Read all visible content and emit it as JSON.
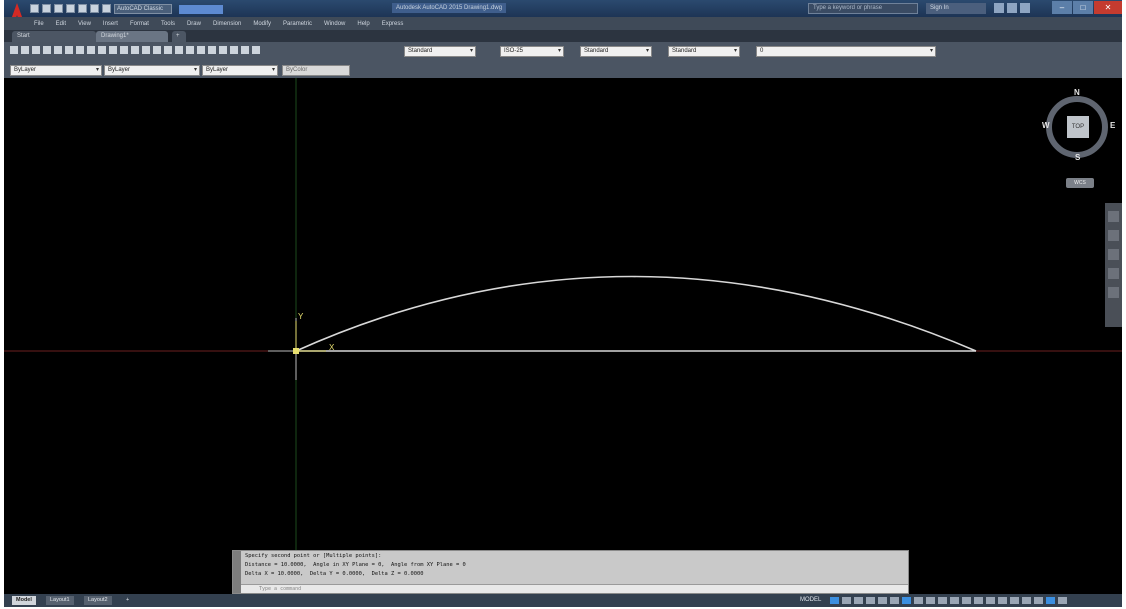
{
  "app": {
    "window_title": "Autodesk AutoCAD 2015 Drawing1.dwg",
    "workspace": "AutoCAD Classic",
    "search_placeholder": "Type a keyword or phrase",
    "signin": "Sign In"
  },
  "menubar": [
    "File",
    "Edit",
    "View",
    "Insert",
    "Format",
    "Tools",
    "Draw",
    "Dimension",
    "Modify",
    "Parametric",
    "Window",
    "Help",
    "Express"
  ],
  "tabs": {
    "start": "Start",
    "drawing": "Drawing1*",
    "add": "+"
  },
  "toolbar": {
    "text_style": "Standard",
    "dim_style": "ISO-25",
    "table_style": "Standard",
    "mleader_style": "Standard",
    "layer": "0"
  },
  "properties": {
    "color": "ByLayer",
    "linetype": "ByLayer",
    "lineweight": "ByLayer",
    "plot_style": "ByColor"
  },
  "ucs": {
    "x_label": "X",
    "y_label": "Y"
  },
  "viewcube": {
    "north": "N",
    "south": "S",
    "east": "E",
    "west": "W",
    "face": "TOP",
    "wcs": "WCS"
  },
  "command": {
    "lines": [
      "Specify second point or [Multiple points]:",
      "Distance = 10.0000,  Angle in XY Plane = 0,  Angle from XY Plane = 0",
      "Delta X = 10.0000,  Delta Y = 0.0000,  Delta Z = 0.0000"
    ],
    "input_placeholder": "Type a command"
  },
  "statusbar": {
    "layouts": [
      "Model",
      "Layout1",
      "Layout2"
    ],
    "add": "+",
    "space": "MODEL"
  },
  "colors": {
    "canvas": "#000000",
    "arc": "#d8d8d8",
    "axis_x": "#6b1f1f",
    "axis_y": "#1d4a1d",
    "ucs": "#e8e070",
    "accent": "#3b8fe0"
  }
}
